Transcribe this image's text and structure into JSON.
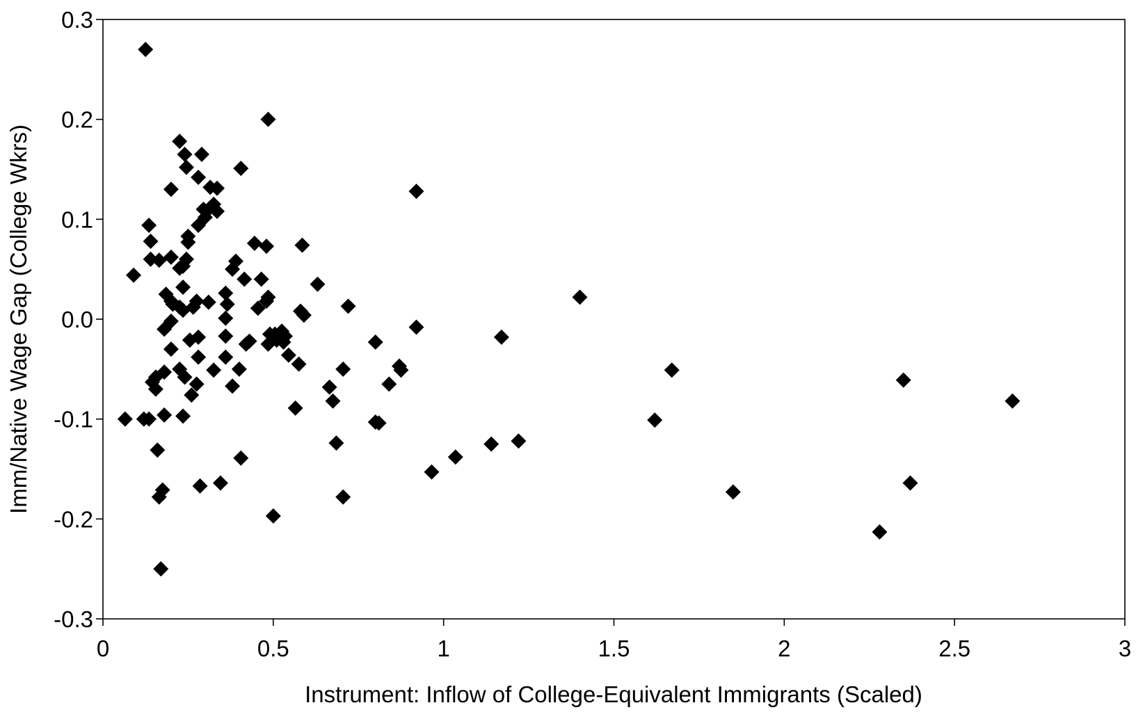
{
  "chart_data": {
    "type": "scatter",
    "title": "",
    "xlabel": "Instrument: Inflow of College-Equivalent Immigrants (Scaled)",
    "ylabel": "Imm/Native Wage Gap (College Wkrs)",
    "xlim": [
      0,
      3
    ],
    "ylim": [
      -0.3,
      0.3
    ],
    "x_ticks": [
      0,
      0.5,
      1,
      1.5,
      2,
      2.5,
      3
    ],
    "x_tick_labels": [
      "0",
      "0.5",
      "1",
      "1.5",
      "2",
      "2.5",
      "3"
    ],
    "y_ticks": [
      -0.3,
      -0.2,
      -0.1,
      0.0,
      0.1,
      0.2,
      0.3
    ],
    "y_tick_labels": [
      "-0.3",
      "-0.2",
      "-0.1",
      "0.0",
      "0.1",
      "0.2",
      "0.3"
    ],
    "grid": false,
    "legend": "none",
    "marker": "diamond",
    "marker_color": "#000000",
    "points": [
      [
        0.125,
        0.27
      ],
      [
        0.485,
        0.2
      ],
      [
        0.225,
        0.178
      ],
      [
        0.24,
        0.165
      ],
      [
        0.29,
        0.165
      ],
      [
        0.245,
        0.152
      ],
      [
        0.405,
        0.151
      ],
      [
        0.28,
        0.142
      ],
      [
        0.2,
        0.13
      ],
      [
        0.315,
        0.132
      ],
      [
        0.335,
        0.131
      ],
      [
        0.92,
        0.128
      ],
      [
        0.325,
        0.115
      ],
      [
        0.295,
        0.11
      ],
      [
        0.31,
        0.11
      ],
      [
        0.335,
        0.108
      ],
      [
        0.3,
        0.102
      ],
      [
        0.28,
        0.094
      ],
      [
        0.135,
        0.094
      ],
      [
        0.25,
        0.083
      ],
      [
        0.14,
        0.078
      ],
      [
        0.25,
        0.077
      ],
      [
        0.445,
        0.076
      ],
      [
        0.585,
        0.074
      ],
      [
        0.48,
        0.073
      ],
      [
        0.2,
        0.062
      ],
      [
        0.14,
        0.06
      ],
      [
        0.165,
        0.059
      ],
      [
        0.245,
        0.06
      ],
      [
        0.39,
        0.058
      ],
      [
        0.235,
        0.053
      ],
      [
        0.225,
        0.051
      ],
      [
        0.38,
        0.05
      ],
      [
        0.09,
        0.044
      ],
      [
        0.415,
        0.04
      ],
      [
        0.465,
        0.04
      ],
      [
        0.63,
        0.035
      ],
      [
        0.235,
        0.032
      ],
      [
        0.36,
        0.026
      ],
      [
        0.185,
        0.025
      ],
      [
        0.485,
        0.022
      ],
      [
        1.4,
        0.022
      ],
      [
        0.2,
        0.018
      ],
      [
        0.275,
        0.018
      ],
      [
        0.31,
        0.017
      ],
      [
        0.48,
        0.018
      ],
      [
        0.205,
        0.015
      ],
      [
        0.365,
        0.015
      ],
      [
        0.72,
        0.013
      ],
      [
        0.225,
        0.012
      ],
      [
        0.265,
        0.012
      ],
      [
        0.455,
        0.011
      ],
      [
        0.235,
        0.009
      ],
      [
        0.58,
        0.008
      ],
      [
        0.59,
        0.004
      ],
      [
        0.36,
        0.001
      ],
      [
        0.2,
        -0.002
      ],
      [
        0.92,
        -0.008
      ],
      [
        0.18,
        -0.01
      ],
      [
        0.525,
        -0.012
      ],
      [
        0.49,
        -0.015
      ],
      [
        0.505,
        -0.015
      ],
      [
        0.36,
        -0.017
      ],
      [
        0.535,
        -0.017
      ],
      [
        1.17,
        -0.018
      ],
      [
        0.28,
        -0.018
      ],
      [
        0.255,
        -0.021
      ],
      [
        0.51,
        -0.021
      ],
      [
        0.43,
        -0.022
      ],
      [
        0.8,
        -0.023
      ],
      [
        0.53,
        -0.023
      ],
      [
        0.42,
        -0.025
      ],
      [
        0.485,
        -0.025
      ],
      [
        0.2,
        -0.03
      ],
      [
        0.545,
        -0.036
      ],
      [
        0.36,
        -0.038
      ],
      [
        0.28,
        -0.038
      ],
      [
        0.575,
        -0.045
      ],
      [
        0.87,
        -0.047
      ],
      [
        0.225,
        -0.05
      ],
      [
        0.325,
        -0.051
      ],
      [
        0.4,
        -0.05
      ],
      [
        0.705,
        -0.05
      ],
      [
        0.875,
        -0.051
      ],
      [
        1.67,
        -0.051
      ],
      [
        0.18,
        -0.053
      ],
      [
        0.24,
        -0.058
      ],
      [
        0.155,
        -0.058
      ],
      [
        2.35,
        -0.061
      ],
      [
        0.145,
        -0.063
      ],
      [
        0.84,
        -0.065
      ],
      [
        0.275,
        -0.065
      ],
      [
        0.38,
        -0.067
      ],
      [
        0.665,
        -0.068
      ],
      [
        0.155,
        -0.07
      ],
      [
        0.26,
        -0.076
      ],
      [
        0.675,
        -0.082
      ],
      [
        2.67,
        -0.082
      ],
      [
        0.565,
        -0.089
      ],
      [
        0.18,
        -0.096
      ],
      [
        0.235,
        -0.097
      ],
      [
        0.065,
        -0.1
      ],
      [
        0.12,
        -0.1
      ],
      [
        0.135,
        -0.1
      ],
      [
        1.62,
        -0.101
      ],
      [
        0.8,
        -0.103
      ],
      [
        0.81,
        -0.104
      ],
      [
        1.22,
        -0.122
      ],
      [
        0.685,
        -0.124
      ],
      [
        1.14,
        -0.125
      ],
      [
        0.16,
        -0.131
      ],
      [
        1.035,
        -0.138
      ],
      [
        0.405,
        -0.139
      ],
      [
        0.965,
        -0.153
      ],
      [
        0.345,
        -0.164
      ],
      [
        0.285,
        -0.167
      ],
      [
        2.37,
        -0.164
      ],
      [
        0.175,
        -0.171
      ],
      [
        1.85,
        -0.173
      ],
      [
        0.165,
        -0.178
      ],
      [
        0.705,
        -0.178
      ],
      [
        0.5,
        -0.197
      ],
      [
        2.28,
        -0.213
      ],
      [
        0.17,
        -0.25
      ]
    ]
  }
}
